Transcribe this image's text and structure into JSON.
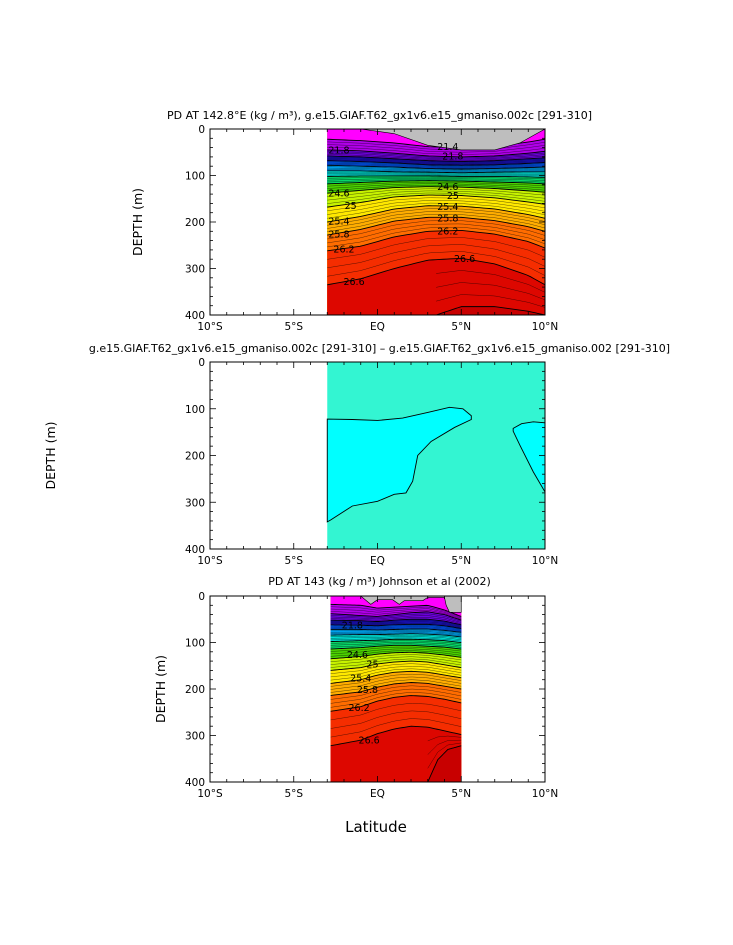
{
  "figure": {
    "x_axis_title": "Latitude",
    "x_ticks": [
      {
        "value": -10,
        "label": "10°S"
      },
      {
        "value": -5,
        "label": "5°S"
      },
      {
        "value": 0,
        "label": "EQ"
      },
      {
        "value": 5,
        "label": "5°N"
      },
      {
        "value": 10,
        "label": "10°N"
      }
    ],
    "y_ticks": [
      0,
      100,
      200,
      300,
      400
    ]
  },
  "chart_data": [
    {
      "type": "contour",
      "title": "PD AT 142.8°E (kg / m³), g.e15.GIAF.T62_gx1v6.e15_gmaniso.002c [291-310]",
      "xlabel": "",
      "ylabel": "DEPTH (m)",
      "xlim": [
        -10,
        10
      ],
      "ylim": [
        0,
        400
      ],
      "y_inverted": true,
      "data_extent": {
        "lat": [
          -3.0,
          10.0
        ]
      },
      "surface_gap_depth": {
        "lat": [
          -3.0,
          -1.0,
          1.0,
          3.0,
          5.0,
          7.0,
          8.5,
          9.5,
          10.0
        ],
        "depth": [
          0,
          0,
          10,
          35,
          45,
          45,
          30,
          10,
          0
        ]
      },
      "isopycnals": [
        {
          "sigma": 21.4,
          "lat": [
            -3,
            -1,
            1,
            3,
            5,
            7,
            9,
            10
          ],
          "depth": [
            22,
            25,
            30,
            38,
            40,
            38,
            28,
            22
          ]
        },
        {
          "sigma": 21.8,
          "lat": [
            -3,
            -1,
            1,
            3,
            5,
            7,
            9,
            10
          ],
          "depth": [
            45,
            47,
            52,
            58,
            60,
            58,
            52,
            48
          ]
        },
        {
          "sigma": 22.2,
          "lat": [
            -3,
            -1,
            1,
            3,
            5,
            7,
            9,
            10
          ],
          "depth": [
            58,
            60,
            64,
            68,
            70,
            68,
            64,
            62
          ]
        },
        {
          "sigma": 22.6,
          "lat": [
            -3,
            -1,
            1,
            3,
            5,
            7,
            9,
            10
          ],
          "depth": [
            68,
            70,
            73,
            77,
            78,
            77,
            74,
            72
          ]
        },
        {
          "sigma": 23.0,
          "lat": [
            -3,
            -1,
            1,
            3,
            5,
            7,
            9,
            10
          ],
          "depth": [
            78,
            80,
            82,
            85,
            86,
            85,
            83,
            82
          ]
        },
        {
          "sigma": 23.4,
          "lat": [
            -3,
            -1,
            1,
            3,
            5,
            7,
            9,
            10
          ],
          "depth": [
            90,
            90,
            92,
            93,
            94,
            93,
            92,
            92
          ]
        },
        {
          "sigma": 23.8,
          "lat": [
            -3,
            -1,
            1,
            3,
            5,
            7,
            9,
            10
          ],
          "depth": [
            102,
            101,
            101,
            101,
            102,
            102,
            103,
            104
          ]
        },
        {
          "sigma": 24.2,
          "lat": [
            -3,
            -1,
            1,
            3,
            5,
            7,
            9,
            10
          ],
          "depth": [
            118,
            115,
            112,
            111,
            112,
            114,
            116,
            118
          ]
        },
        {
          "sigma": 24.6,
          "lat": [
            -3,
            -1,
            1,
            3,
            5,
            7,
            9,
            10
          ],
          "depth": [
            138,
            132,
            126,
            124,
            125,
            128,
            133,
            136
          ]
        },
        {
          "sigma": 25.0,
          "lat": [
            -3,
            -1,
            1,
            3,
            5,
            7,
            9,
            10
          ],
          "depth": [
            168,
            158,
            146,
            142,
            143,
            148,
            157,
            162
          ]
        },
        {
          "sigma": 25.4,
          "lat": [
            -3,
            -1,
            1,
            3,
            5,
            7,
            9,
            10
          ],
          "depth": [
            200,
            188,
            172,
            165,
            166,
            172,
            184,
            192
          ]
        },
        {
          "sigma": 25.8,
          "lat": [
            -3,
            -1,
            1,
            3,
            5,
            7,
            9,
            10
          ],
          "depth": [
            228,
            216,
            198,
            190,
            190,
            197,
            210,
            220
          ]
        },
        {
          "sigma": 26.2,
          "lat": [
            -3,
            -1,
            1,
            3,
            5,
            7,
            9,
            10
          ],
          "depth": [
            262,
            252,
            232,
            220,
            218,
            226,
            242,
            256
          ]
        },
        {
          "sigma": 26.6,
          "lat": [
            -3,
            -1,
            1,
            3,
            5,
            7,
            9,
            10
          ],
          "depth": [
            335,
            322,
            300,
            282,
            278,
            290,
            315,
            335
          ]
        },
        {
          "sigma": 27.0,
          "lat": [
            3.5,
            5,
            7,
            9,
            10
          ],
          "depth": [
            400,
            382,
            382,
            392,
            400
          ]
        }
      ],
      "contour_labels": [
        {
          "text": "21.4",
          "lat": 4.2,
          "depth": 38
        },
        {
          "text": "21.8",
          "lat": -2.3,
          "depth": 45
        },
        {
          "text": "21.8",
          "lat": 4.5,
          "depth": 58
        },
        {
          "text": "25",
          "lat": 4.5,
          "depth": 143
        },
        {
          "text": "25",
          "lat": -1.6,
          "depth": 164
        },
        {
          "text": "24.6",
          "lat": 4.2,
          "depth": 124
        },
        {
          "text": "24.6",
          "lat": -2.3,
          "depth": 138
        },
        {
          "text": "25.4",
          "lat": 4.2,
          "depth": 167
        },
        {
          "text": "25.4",
          "lat": -2.3,
          "depth": 198
        },
        {
          "text": "25.8",
          "lat": 4.2,
          "depth": 191
        },
        {
          "text": "25.8",
          "lat": -2.3,
          "depth": 226
        },
        {
          "text": "26.2",
          "lat": 4.2,
          "depth": 219
        },
        {
          "text": "26.2",
          "lat": -2.0,
          "depth": 258
        },
        {
          "text": "26.6",
          "lat": 5.2,
          "depth": 278
        },
        {
          "text": "26.6",
          "lat": -1.4,
          "depth": 328
        }
      ],
      "color_scale": {
        "min": 21.0,
        "max": 27.2,
        "land_or_gap_color": "#bebebe"
      }
    },
    {
      "type": "contour",
      "title": "g.e15.GIAF.T62_gx1v6.e15_gmaniso.002c [291-310] – g.e15.GIAF.T62_gx1v6.e15_gmaniso.002 [291-310]",
      "xlabel": "",
      "ylabel": "DEPTH (m)",
      "xlim": [
        -10,
        10
      ],
      "ylim": [
        0,
        400
      ],
      "y_inverted": true,
      "data_extent": {
        "lat": [
          -3.0,
          10.0
        ]
      },
      "background_fill": "#33f5d2",
      "regions": [
        {
          "fill": "#00ffff",
          "boundary": {
            "lat": [
              -3.0,
              -1.5,
              0.0,
              1.5,
              3.0,
              4.3,
              5.1,
              5.6,
              5.6,
              4.6,
              3.2,
              2.4,
              2.1,
              1.7,
              1.0,
              0.0,
              -1.5,
              -2.8,
              -3.0
            ],
            "depth": [
              122,
              123,
              125,
              120,
              108,
              97,
              100,
              115,
              123,
              140,
              170,
              200,
              255,
              280,
              283,
              298,
              308,
              338,
              342
            ]
          }
        },
        {
          "fill": "#00ffff",
          "boundary": {
            "lat": [
              8.1,
              8.6,
              9.3,
              10.0,
              10.0,
              9.3,
              8.5,
              8.1
            ],
            "depth": [
              142,
              132,
              128,
              130,
              278,
              235,
              178,
              148
            ]
          }
        }
      ]
    },
    {
      "type": "contour",
      "title": "PD AT 143 (kg / m³) Johnson et al (2002)",
      "xlabel": "Latitude",
      "ylabel": "DEPTH (m)",
      "xlim": [
        -10,
        10
      ],
      "ylim": [
        0,
        400
      ],
      "y_inverted": true,
      "data_extent": {
        "lat": [
          -2.8,
          5.0
        ]
      },
      "surface_gap_depth": {
        "lat": [
          -2.8,
          -1.0,
          -0.4,
          0.0,
          0.9,
          1.3,
          1.6,
          2.7,
          3.0,
          4.0,
          4.1,
          4.3,
          5.0
        ],
        "depth": [
          0,
          0,
          18,
          8,
          8,
          18,
          10,
          10,
          3,
          3,
          20,
          35,
          35
        ]
      },
      "isopycnals": [
        {
          "sigma": 21.4,
          "lat": [
            -2.8,
            -1,
            0,
            1,
            2,
            3,
            4,
            5
          ],
          "depth": [
            18,
            20,
            26,
            24,
            22,
            20,
            30,
            44
          ]
        },
        {
          "sigma": 21.8,
          "lat": [
            -2.8,
            -1,
            0,
            1,
            2,
            3,
            4,
            5
          ],
          "depth": [
            38,
            42,
            44,
            40,
            36,
            34,
            40,
            52
          ]
        },
        {
          "sigma": 22.2,
          "lat": [
            -2.8,
            -1,
            0,
            1,
            2,
            3,
            4,
            5
          ],
          "depth": [
            52,
            53,
            55,
            52,
            50,
            50,
            54,
            62
          ]
        },
        {
          "sigma": 22.6,
          "lat": [
            -2.8,
            -1,
            0,
            1,
            2,
            3,
            4,
            5
          ],
          "depth": [
            62,
            63,
            64,
            62,
            61,
            61,
            64,
            70
          ]
        },
        {
          "sigma": 23.0,
          "lat": [
            -2.8,
            -1,
            0,
            1,
            2,
            3,
            4,
            5
          ],
          "depth": [
            72,
            72,
            73,
            72,
            71,
            71,
            74,
            78
          ]
        },
        {
          "sigma": 23.4,
          "lat": [
            -2.8,
            -1,
            0,
            1,
            2,
            3,
            4,
            5
          ],
          "depth": [
            84,
            83,
            83,
            82,
            81,
            82,
            84,
            88
          ]
        },
        {
          "sigma": 23.8,
          "lat": [
            -2.8,
            -1,
            0,
            1,
            2,
            3,
            4,
            5
          ],
          "depth": [
            98,
            96,
            95,
            93,
            93,
            94,
            96,
            100
          ]
        },
        {
          "sigma": 24.2,
          "lat": [
            -2.8,
            -1,
            0,
            1,
            2,
            3,
            4,
            5
          ],
          "depth": [
            114,
            111,
            108,
            106,
            106,
            108,
            110,
            114
          ]
        },
        {
          "sigma": 24.6,
          "lat": [
            -2.8,
            -1,
            0,
            1,
            2,
            3,
            4,
            5
          ],
          "depth": [
            135,
            130,
            125,
            122,
            121,
            123,
            127,
            132
          ]
        },
        {
          "sigma": 25.0,
          "lat": [
            -2.8,
            -1,
            0,
            1,
            2,
            3,
            4,
            5
          ],
          "depth": [
            160,
            154,
            146,
            142,
            140,
            142,
            148,
            154
          ]
        },
        {
          "sigma": 25.4,
          "lat": [
            -2.8,
            -1,
            0,
            1,
            2,
            3,
            4,
            5
          ],
          "depth": [
            188,
            180,
            170,
            164,
            162,
            164,
            170,
            176
          ]
        },
        {
          "sigma": 25.8,
          "lat": [
            -2.8,
            -1,
            0,
            1,
            2,
            3,
            4,
            5
          ],
          "depth": [
            214,
            206,
            196,
            189,
            186,
            188,
            194,
            200
          ]
        },
        {
          "sigma": 26.2,
          "lat": [
            -2.8,
            -1,
            0,
            1,
            2,
            3,
            4,
            5
          ],
          "depth": [
            248,
            238,
            226,
            218,
            214,
            216,
            222,
            230
          ]
        },
        {
          "sigma": 26.6,
          "lat": [
            -2.8,
            -1,
            0,
            1,
            2,
            3,
            4,
            5
          ],
          "depth": [
            322,
            310,
            296,
            286,
            280,
            282,
            290,
            298
          ]
        },
        {
          "sigma": 27.0,
          "lat": [
            3.0,
            3.6,
            4.2,
            5.0
          ],
          "depth": [
            400,
            352,
            330,
            322
          ]
        }
      ],
      "contour_labels": [
        {
          "text": "21.8",
          "lat": -1.5,
          "depth": 62
        },
        {
          "text": "25",
          "lat": -0.3,
          "depth": 146
        },
        {
          "text": "24.6",
          "lat": -1.2,
          "depth": 126
        },
        {
          "text": "25.4",
          "lat": -1.0,
          "depth": 176
        },
        {
          "text": "25.8",
          "lat": -0.6,
          "depth": 201
        },
        {
          "text": "26.2",
          "lat": -1.1,
          "depth": 240
        },
        {
          "text": "26.6",
          "lat": -0.5,
          "depth": 310
        }
      ],
      "color_scale": {
        "min": 21.0,
        "max": 27.2,
        "land_or_gap_color": "#bebebe"
      }
    }
  ]
}
